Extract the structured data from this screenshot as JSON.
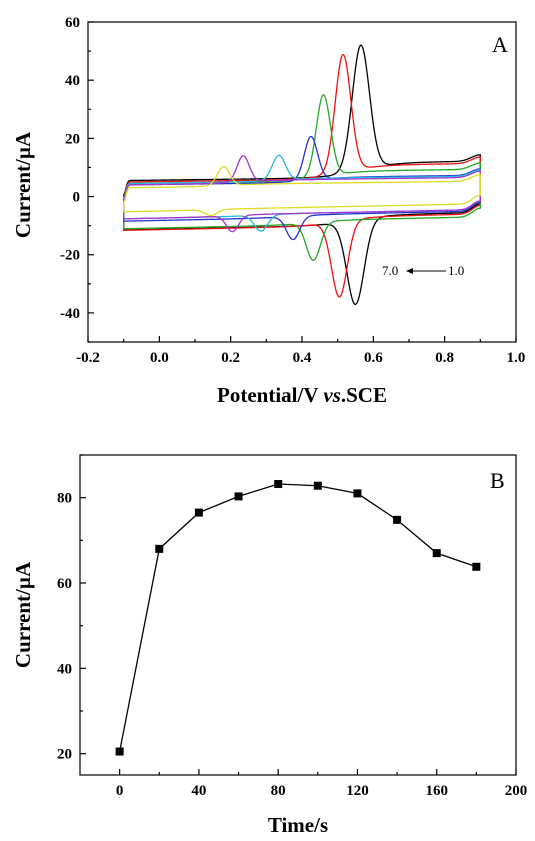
{
  "chart_data": [
    {
      "type": "line",
      "panel_label": "A",
      "xlabel": {
        "main": "Potential/V ",
        "italic": "vs",
        "tail": ".SCE"
      },
      "ylabel": "Current/µA",
      "xlim": [
        -0.2,
        1.0
      ],
      "ylim": [
        -50,
        60
      ],
      "xticks": [
        "-0.2",
        "0.0",
        "0.2",
        "0.4",
        "0.6",
        "0.8",
        "1.0"
      ],
      "yticks": [
        "-40",
        "-20",
        "0",
        "20",
        "40",
        "60"
      ],
      "annotation": {
        "left": "7.0",
        "right": "1.0"
      },
      "series": [
        {
          "color": "#000000",
          "anodic_peak": [
            0.565,
            48.5
          ],
          "cathodic_peak": [
            0.55,
            -37.0
          ],
          "ia": 5.5,
          "ic": -8.0,
          "width": 0.034
        },
        {
          "color": "#ee1111",
          "anodic_peak": [
            0.515,
            45.5
          ],
          "cathodic_peak": [
            0.505,
            -34.5
          ],
          "ia": 5.0,
          "ic": -8.5,
          "width": 0.031
        },
        {
          "color": "#22aa22",
          "anodic_peak": [
            0.46,
            32.5
          ],
          "cathodic_peak": [
            0.432,
            -22.5
          ],
          "ia": 4.5,
          "ic": -9.5,
          "width": 0.028
        },
        {
          "color": "#2233cc",
          "anodic_peak": [
            0.425,
            19.0
          ],
          "cathodic_peak": [
            0.375,
            -15.5
          ],
          "ia": 4.0,
          "ic": -7.5,
          "width": 0.026
        },
        {
          "color": "#22bbdd",
          "anodic_peak": [
            0.335,
            13.0
          ],
          "cathodic_peak": [
            0.285,
            -12.5
          ],
          "ia": 4.5,
          "ic": -7.0,
          "width": 0.026
        },
        {
          "color": "#aa33cc",
          "anodic_peak": [
            0.235,
            13.0
          ],
          "cathodic_peak": [
            0.205,
            -12.5
          ],
          "ia": 4.0,
          "ic": -7.0,
          "width": 0.024
        },
        {
          "color": "#dddd22",
          "anodic_peak": [
            0.18,
            9.5
          ],
          "cathodic_peak": [
            0.145,
            -7.0
          ],
          "ia": 3.0,
          "ic": -5.0,
          "width": 0.024
        }
      ]
    },
    {
      "type": "line",
      "panel_label": "B",
      "xlabel": "Time/s",
      "ylabel": "Current/µA",
      "xlim": [
        -20,
        200
      ],
      "ylim": [
        15,
        90
      ],
      "xticks": [
        "0",
        "40",
        "80",
        "120",
        "160",
        "200"
      ],
      "yticks": [
        "20",
        "40",
        "60",
        "80"
      ],
      "x": [
        0,
        20,
        40,
        60,
        80,
        100,
        120,
        140,
        160,
        180
      ],
      "values": [
        20.5,
        68.0,
        76.5,
        80.3,
        83.2,
        82.8,
        81.0,
        74.8,
        67.0,
        63.8
      ]
    }
  ]
}
